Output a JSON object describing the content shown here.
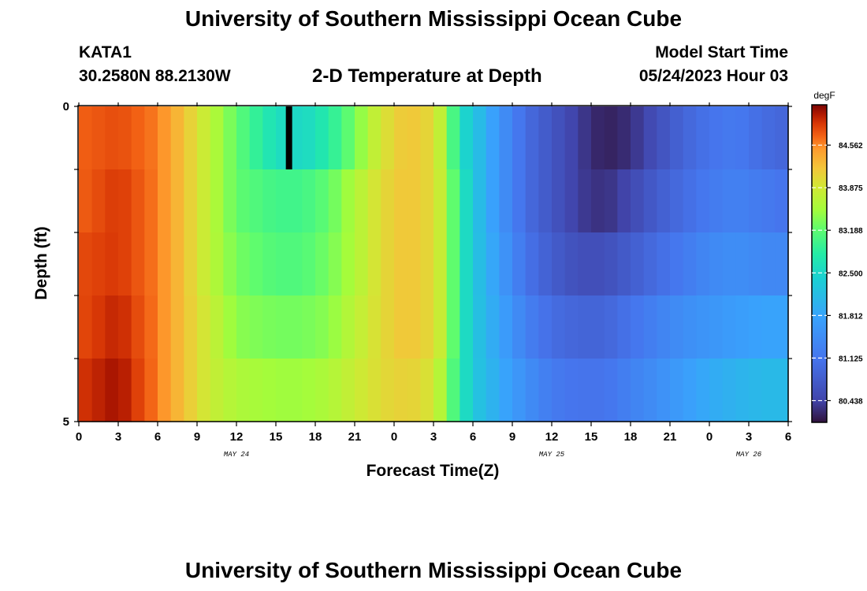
{
  "header": {
    "title": "University of Southern Mississippi Ocean Cube",
    "station_id": "KATA1",
    "station_coords": "30.2580N  88.2130W",
    "chart_title": "2-D Temperature at Depth",
    "start_label": "Model Start Time",
    "start_value": "05/24/2023 Hour 03"
  },
  "footer": {
    "title": "University of Southern Mississippi Ocean Cube"
  },
  "chart_data": {
    "type": "heatmap",
    "title": "2-D Temperature at Depth",
    "xlabel": "Forecast Time(Z)",
    "ylabel": "Depth (ft)",
    "x_range_hours": [
      0,
      54
    ],
    "x_tick_labels": [
      "0",
      "3",
      "6",
      "9",
      "12",
      "15",
      "18",
      "21",
      "0",
      "3",
      "6",
      "9",
      "12",
      "15",
      "18",
      "21",
      "0",
      "3",
      "6"
    ],
    "date_labels": [
      {
        "text": "MAY 24",
        "hour": 12
      },
      {
        "text": "MAY 25",
        "hour": 36
      },
      {
        "text": "MAY 26",
        "hour": 51
      }
    ],
    "y_range": [
      0,
      5
    ],
    "y_tick_labels": [
      "0",
      "5"
    ],
    "depth_layers": 5,
    "colorbar": {
      "unit": "degF",
      "range": [
        80.1,
        85.2
      ],
      "tick_values": [
        84.562,
        83.875,
        83.188,
        82.5,
        81.812,
        81.125,
        80.438
      ],
      "tick_labels": [
        "84.562",
        "83.875",
        "83.188",
        "82.500",
        "81.812",
        "81.125",
        "80.438"
      ]
    },
    "surface_anomaly": {
      "hour": 16,
      "value": 79.9
    },
    "series": [
      {
        "depth_layer": 0,
        "anchors": [
          [
            0,
            84.7
          ],
          [
            3,
            84.8
          ],
          [
            6,
            84.6
          ],
          [
            8,
            84.2
          ],
          [
            10,
            83.7
          ],
          [
            12,
            83.2
          ],
          [
            15,
            82.6
          ],
          [
            17,
            82.5
          ],
          [
            19,
            82.8
          ],
          [
            21,
            83.3
          ],
          [
            23,
            83.9
          ],
          [
            25,
            84.2
          ],
          [
            27,
            84.0
          ],
          [
            28,
            83.5
          ],
          [
            29,
            82.6
          ],
          [
            30,
            82.3
          ],
          [
            32,
            81.6
          ],
          [
            34,
            81.0
          ],
          [
            36,
            80.7
          ],
          [
            38,
            80.4
          ],
          [
            40,
            80.2
          ],
          [
            42,
            80.3
          ],
          [
            44,
            80.6
          ],
          [
            46,
            80.9
          ],
          [
            48,
            81.1
          ],
          [
            50,
            81.2
          ],
          [
            52,
            81.0
          ],
          [
            54,
            80.9
          ]
        ]
      },
      {
        "depth_layer": 1,
        "anchors": [
          [
            0,
            84.7
          ],
          [
            3,
            84.9
          ],
          [
            6,
            84.6
          ],
          [
            8,
            84.2
          ],
          [
            10,
            83.7
          ],
          [
            12,
            83.2
          ],
          [
            15,
            83.0
          ],
          [
            17,
            83.0
          ],
          [
            19,
            83.2
          ],
          [
            21,
            83.6
          ],
          [
            23,
            84.0
          ],
          [
            25,
            84.2
          ],
          [
            27,
            84.0
          ],
          [
            28,
            83.6
          ],
          [
            29,
            82.8
          ],
          [
            30,
            82.3
          ],
          [
            32,
            81.6
          ],
          [
            34,
            81.0
          ],
          [
            36,
            80.7
          ],
          [
            38,
            80.4
          ],
          [
            40,
            80.3
          ],
          [
            42,
            80.5
          ],
          [
            44,
            80.8
          ],
          [
            46,
            81.0
          ],
          [
            48,
            81.2
          ],
          [
            50,
            81.3
          ],
          [
            52,
            81.2
          ],
          [
            54,
            81.1
          ]
        ]
      },
      {
        "depth_layer": 2,
        "anchors": [
          [
            0,
            84.8
          ],
          [
            3,
            84.9
          ],
          [
            6,
            84.6
          ],
          [
            8,
            84.2
          ],
          [
            10,
            83.7
          ],
          [
            12,
            83.3
          ],
          [
            15,
            83.1
          ],
          [
            17,
            83.1
          ],
          [
            19,
            83.3
          ],
          [
            21,
            83.6
          ],
          [
            23,
            84.0
          ],
          [
            25,
            84.2
          ],
          [
            27,
            84.0
          ],
          [
            28,
            83.6
          ],
          [
            29,
            82.8
          ],
          [
            30,
            82.3
          ],
          [
            32,
            81.7
          ],
          [
            34,
            81.1
          ],
          [
            36,
            80.8
          ],
          [
            38,
            80.6
          ],
          [
            40,
            80.6
          ],
          [
            42,
            80.8
          ],
          [
            44,
            81.0
          ],
          [
            46,
            81.2
          ],
          [
            48,
            81.4
          ],
          [
            50,
            81.5
          ],
          [
            52,
            81.4
          ],
          [
            54,
            81.4
          ]
        ]
      },
      {
        "depth_layer": 3,
        "anchors": [
          [
            0,
            84.8
          ],
          [
            3,
            85.0
          ],
          [
            6,
            84.6
          ],
          [
            8,
            84.2
          ],
          [
            10,
            83.8
          ],
          [
            12,
            83.4
          ],
          [
            15,
            83.3
          ],
          [
            17,
            83.3
          ],
          [
            19,
            83.4
          ],
          [
            21,
            83.7
          ],
          [
            23,
            84.0
          ],
          [
            25,
            84.2
          ],
          [
            27,
            84.0
          ],
          [
            28,
            83.6
          ],
          [
            29,
            82.8
          ],
          [
            30,
            82.3
          ],
          [
            32,
            81.8
          ],
          [
            34,
            81.3
          ],
          [
            36,
            81.0
          ],
          [
            38,
            80.9
          ],
          [
            40,
            80.9
          ],
          [
            42,
            81.1
          ],
          [
            44,
            81.3
          ],
          [
            46,
            81.5
          ],
          [
            48,
            81.6
          ],
          [
            50,
            81.7
          ],
          [
            52,
            81.8
          ],
          [
            54,
            81.8
          ]
        ]
      },
      {
        "depth_layer": 4,
        "anchors": [
          [
            0,
            84.9
          ],
          [
            3,
            85.1
          ],
          [
            6,
            84.6
          ],
          [
            8,
            84.2
          ],
          [
            10,
            83.8
          ],
          [
            12,
            83.6
          ],
          [
            15,
            83.5
          ],
          [
            17,
            83.5
          ],
          [
            19,
            83.6
          ],
          [
            21,
            83.8
          ],
          [
            23,
            84.0
          ],
          [
            25,
            84.1
          ],
          [
            27,
            83.9
          ],
          [
            28,
            83.4
          ],
          [
            29,
            82.8
          ],
          [
            30,
            82.3
          ],
          [
            32,
            81.9
          ],
          [
            34,
            81.5
          ],
          [
            36,
            81.2
          ],
          [
            38,
            81.1
          ],
          [
            40,
            81.1
          ],
          [
            42,
            81.3
          ],
          [
            44,
            81.5
          ],
          [
            46,
            81.7
          ],
          [
            48,
            81.9
          ],
          [
            50,
            82.0
          ],
          [
            52,
            82.1
          ],
          [
            54,
            82.1
          ]
        ]
      }
    ]
  }
}
